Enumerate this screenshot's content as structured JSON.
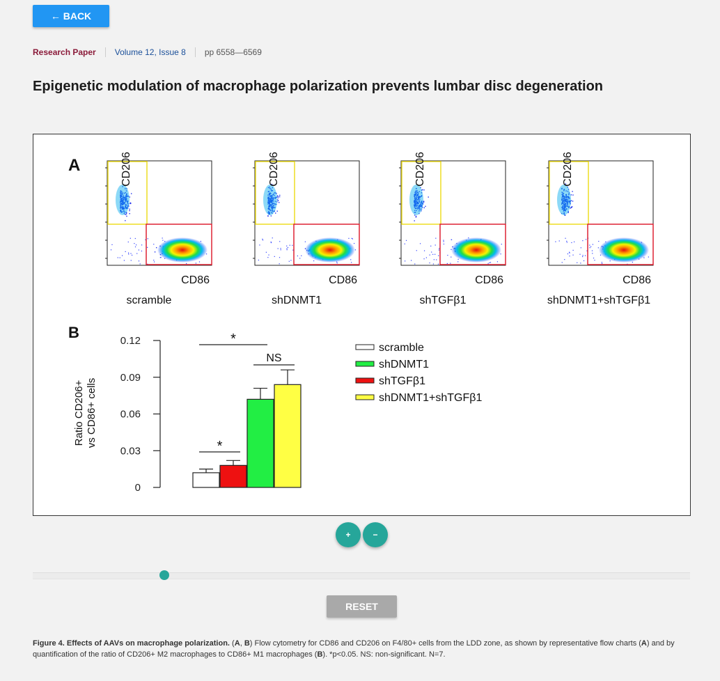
{
  "nav": {
    "back_label": "← BACK"
  },
  "meta": {
    "type": "Research Paper",
    "volume": "Volume 12, Issue 8",
    "pages": "pp 6558—6569"
  },
  "article": {
    "title": "Epigenetic modulation of macrophage polarization prevents lumbar disc degeneration"
  },
  "figure": {
    "panel_a": {
      "letter": "A",
      "x_label": "CD86",
      "y_label": "CD206",
      "plots": [
        {
          "name": "scramble"
        },
        {
          "name": "shDNMT1"
        },
        {
          "name": "shTGFβ1"
        },
        {
          "name": "shDNMT1+shTGFβ1"
        }
      ]
    },
    "panel_b": {
      "letter": "B"
    }
  },
  "chart_data": {
    "type": "bar",
    "ylabel": "Ratio CD206+ vs CD86+ cells",
    "ylabel_lines": [
      "Ratio CD206+",
      "vs CD86+ cells"
    ],
    "ylim": [
      0,
      0.12
    ],
    "yticks": [
      "0",
      "0.03",
      "0.06",
      "0.09",
      "0.12"
    ],
    "categories": [
      "scramble",
      "shDNMT1",
      "shTGFβ1",
      "shDNMT1+shTGFβ1"
    ],
    "values": [
      0.012,
      0.072,
      0.018,
      0.084
    ],
    "errors": [
      0.003,
      0.009,
      0.004,
      0.012
    ],
    "bar_order": [
      0,
      2,
      1,
      3
    ],
    "colors": [
      "#ffffff",
      "#22ee44",
      "#ee1111",
      "#ffff44"
    ],
    "legend": [
      "scramble",
      "shDNMT1",
      "shTGFβ1",
      "shDNMT1+shTGFβ1"
    ],
    "legend_position": "top-right",
    "annotations": [
      {
        "label": "*",
        "between": [
          "scramble",
          "shTGFβ1"
        ]
      },
      {
        "label": "*",
        "between": [
          "scramble",
          "shDNMT1"
        ]
      },
      {
        "label": "NS",
        "between": [
          "shDNMT1",
          "shDNMT1+shTGFβ1"
        ]
      }
    ]
  },
  "controls": {
    "zoom_in": "+",
    "zoom_out": "−",
    "reset": "RESET",
    "slider_value": 0.2
  },
  "caption": {
    "title": "Figure 4. Effects of AAVs on macrophage polarization.",
    "t1": " (",
    "a1": "A",
    "t2": ", ",
    "b1": "B",
    "t3": ") Flow cytometry for CD86 and CD206 on F4/80+ cells from the LDD zone, as shown by representative flow charts (",
    "a2": "A",
    "t4": ") and by quantification of the ratio of CD206+ M2 macrophages to CD86+ M1 macrophages (",
    "b2": "B",
    "t5": "). *p<0.05. NS: non-significant. N=7."
  }
}
